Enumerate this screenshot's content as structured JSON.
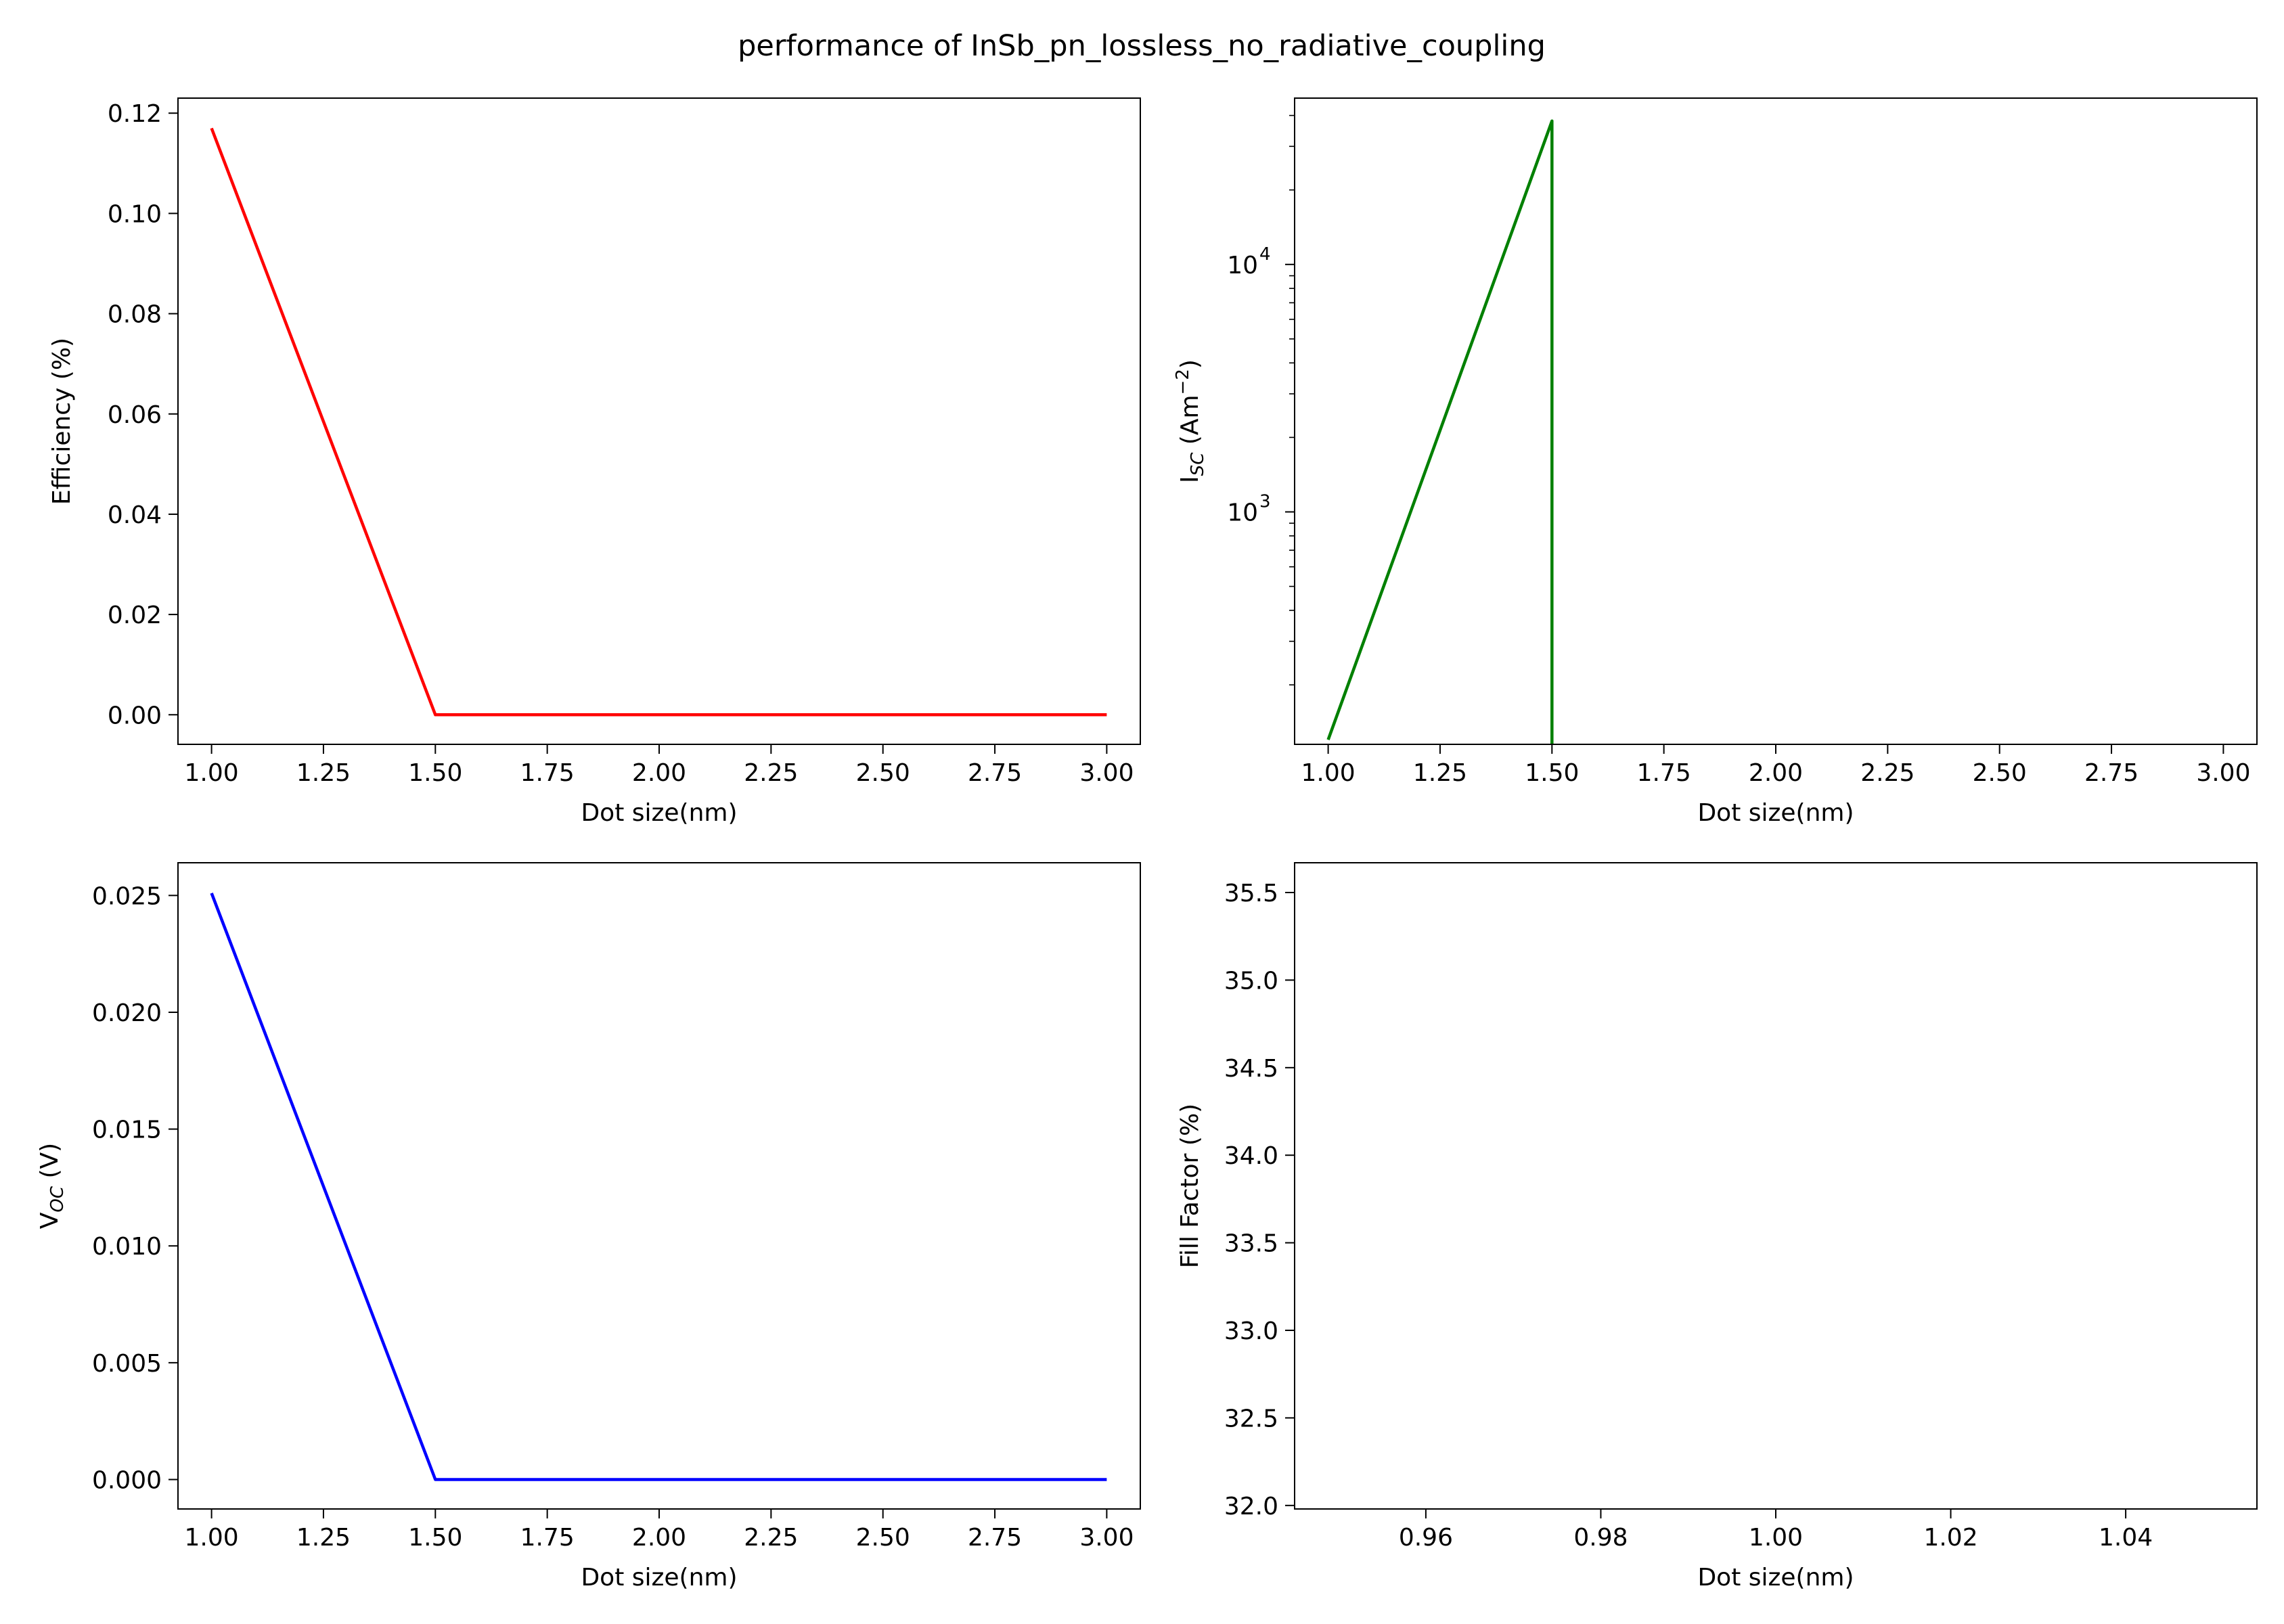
{
  "figure": {
    "suptitle": "performance of InSb_pn_lossless_no_radiative_coupling"
  },
  "chart_data": [
    {
      "type": "line",
      "panel": "top-left",
      "xlabel": "Dot size(nm)",
      "ylabel": "Efficiency (%)",
      "xlim": [
        0.925,
        3.075
      ],
      "ylim": [
        -0.0059,
        0.123
      ],
      "xticks": [
        1.0,
        1.25,
        1.5,
        1.75,
        2.0,
        2.25,
        2.5,
        2.75,
        3.0
      ],
      "xtick_labels": [
        "1.00",
        "1.25",
        "1.50",
        "1.75",
        "2.00",
        "2.25",
        "2.50",
        "2.75",
        "3.00"
      ],
      "yticks": [
        0.0,
        0.02,
        0.04,
        0.06,
        0.08,
        0.1,
        0.12
      ],
      "ytick_labels": [
        "0.00",
        "0.02",
        "0.04",
        "0.06",
        "0.08",
        "0.10",
        "0.12"
      ],
      "grid": false,
      "series": [
        {
          "color": "#ff0000",
          "x": [
            1.0,
            1.5,
            2.0,
            2.5,
            3.0
          ],
          "y": [
            0.117,
            0.0,
            0.0,
            0.0,
            0.0
          ]
        }
      ]
    },
    {
      "type": "line",
      "panel": "top-right",
      "xlabel": "Dot size(nm)",
      "ylabel_main": "I",
      "ylabel_sub": "SC",
      "ylabel_unit": " (Am",
      "ylabel_sup": "−2",
      "ylabel_end": ")",
      "yscale": "log",
      "xlim": [
        0.925,
        3.075
      ],
      "ylim": [
        115,
        47000
      ],
      "xticks": [
        1.0,
        1.25,
        1.5,
        1.75,
        2.0,
        2.25,
        2.5,
        2.75,
        3.0
      ],
      "xtick_labels": [
        "1.00",
        "1.25",
        "1.50",
        "1.75",
        "2.00",
        "2.25",
        "2.50",
        "2.75",
        "3.00"
      ],
      "ytick_major": [
        {
          "base": "10",
          "exp": "3",
          "value": 1000
        },
        {
          "base": "10",
          "exp": "4",
          "value": 10000
        }
      ],
      "ytick_minor": [
        200,
        300,
        400,
        500,
        600,
        700,
        800,
        900,
        2000,
        3000,
        4000,
        5000,
        6000,
        7000,
        8000,
        9000,
        20000,
        30000,
        40000
      ],
      "grid": false,
      "series": [
        {
          "color": "#008000",
          "x": [
            1.0,
            1.5,
            1.5
          ],
          "y": [
            120,
            38000,
            115
          ]
        }
      ]
    },
    {
      "type": "line",
      "panel": "bottom-left",
      "xlabel": "Dot size(nm)",
      "ylabel_main": "V",
      "ylabel_sub": "OC",
      "ylabel_end": " (V)",
      "xlim": [
        0.925,
        3.075
      ],
      "ylim": [
        -0.00126,
        0.0264
      ],
      "xticks": [
        1.0,
        1.25,
        1.5,
        1.75,
        2.0,
        2.25,
        2.5,
        2.75,
        3.0
      ],
      "xtick_labels": [
        "1.00",
        "1.25",
        "1.50",
        "1.75",
        "2.00",
        "2.25",
        "2.50",
        "2.75",
        "3.00"
      ],
      "yticks": [
        0.0,
        0.005,
        0.01,
        0.015,
        0.02,
        0.025
      ],
      "ytick_labels": [
        "0.000",
        "0.005",
        "0.010",
        "0.015",
        "0.020",
        "0.025"
      ],
      "grid": false,
      "series": [
        {
          "color": "#0000ff",
          "x": [
            1.0,
            1.5,
            2.0,
            2.5,
            3.0
          ],
          "y": [
            0.0251,
            0.0,
            0.0,
            0.0,
            0.0
          ]
        }
      ]
    },
    {
      "type": "line",
      "panel": "bottom-right",
      "xlabel": "Dot size(nm)",
      "ylabel": "Fill Factor (%)",
      "xlim": [
        0.945,
        1.055
      ],
      "ylim": [
        31.98,
        35.67
      ],
      "xticks": [
        0.96,
        0.98,
        1.0,
        1.02,
        1.04
      ],
      "xtick_labels": [
        "0.96",
        "0.98",
        "1.00",
        "1.02",
        "1.04"
      ],
      "yticks": [
        32.0,
        32.5,
        33.0,
        33.5,
        34.0,
        34.5,
        35.0,
        35.5
      ],
      "ytick_labels": [
        "32.0",
        "32.5",
        "33.0",
        "33.5",
        "34.0",
        "34.5",
        "35.0",
        "35.5"
      ],
      "grid": false,
      "series": []
    }
  ]
}
